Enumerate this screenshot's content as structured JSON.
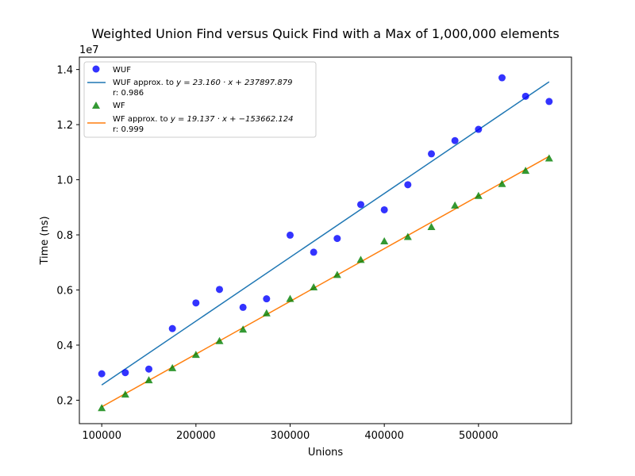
{
  "chart_data": {
    "type": "scatter",
    "title": "Weighted Union Find versus Quick Find with a Max of 1,000,000 elements",
    "xlabel": "Unions",
    "ylabel": "Time (ns)",
    "y_scale_text": "1e7",
    "y_scale": 10000000,
    "xlim": [
      76250,
      598750
    ],
    "ylim": [
      1150000,
      14450000
    ],
    "x_ticks": [
      100000,
      200000,
      300000,
      400000,
      500000
    ],
    "x_tick_labels": [
      "100000",
      "200000",
      "300000",
      "400000",
      "500000"
    ],
    "y_ticks": [
      2000000,
      4000000,
      6000000,
      8000000,
      10000000,
      12000000,
      14000000
    ],
    "y_tick_labels": [
      "0.2",
      "0.4",
      "0.6",
      "0.8",
      "1.0",
      "1.2",
      "1.4"
    ],
    "grid": false,
    "legend_placement": "top-left",
    "x": [
      100000,
      125000,
      150000,
      175000,
      200000,
      225000,
      250000,
      275000,
      300000,
      325000,
      350000,
      375000,
      400000,
      425000,
      450000,
      475000,
      500000,
      525000,
      550000,
      575000
    ],
    "series": [
      {
        "name": "WUF",
        "kind": "scatter",
        "marker": "circle",
        "color": "#0000ff",
        "values": [
          2960000,
          3000000,
          3130000,
          4600000,
          5530000,
          6020000,
          5370000,
          5680000,
          7990000,
          7370000,
          7870000,
          9100000,
          8910000,
          9820000,
          10940000,
          11420000,
          11830000,
          13700000,
          13030000,
          12840000
        ]
      },
      {
        "name_prefix": "WUF approx. to ",
        "equation": "y = 23.160 · x + 237897.879",
        "r_text": "r: 0.986",
        "kind": "line",
        "slope": 23.16,
        "intercept": 237897.879,
        "color": "#1f77b4"
      },
      {
        "name": "WF",
        "kind": "scatter",
        "marker": "triangle",
        "color": "#008000",
        "values": [
          1720000,
          2210000,
          2730000,
          3170000,
          3650000,
          4150000,
          4570000,
          5160000,
          5680000,
          6100000,
          6550000,
          7100000,
          7770000,
          7930000,
          8290000,
          9070000,
          9420000,
          9850000,
          10330000,
          10780000
        ]
      },
      {
        "name_prefix": "WF approx. to ",
        "equation": "y = 19.137 · x + −153662.124",
        "r_text": "r: 0.999",
        "kind": "line",
        "slope": 19.137,
        "intercept": -153662.124,
        "color": "#ff7f0e"
      }
    ]
  }
}
